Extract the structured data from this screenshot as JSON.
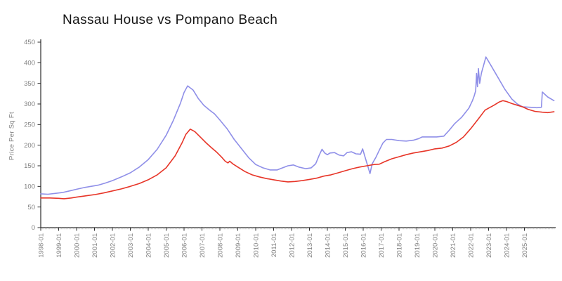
{
  "page": {
    "background": "#ffffff"
  },
  "chart_data": {
    "type": "line",
    "title": "Nassau House vs Pompano Beach",
    "ylabel": "Price Per Sq Ft",
    "xlabel": "",
    "ylim": [
      0,
      450
    ],
    "y_ticks": [
      0,
      50,
      100,
      150,
      200,
      250,
      300,
      350,
      400,
      450
    ],
    "x_tick_labels": [
      "1998-01",
      "1999-01",
      "2000-01",
      "2001-01",
      "2002-01",
      "2003-01",
      "2004-01",
      "2005-01",
      "2006-01",
      "2007-01",
      "2008-01",
      "2009-01",
      "2010-01",
      "2011-01",
      "2012-01",
      "2013-01",
      "2014-01",
      "2015-01",
      "2016-01",
      "2017-01",
      "2018-01",
      "2019-01",
      "2020-01",
      "2021-01",
      "2022-01",
      "2023-01",
      "2024-01",
      "2025-01"
    ],
    "xlim_years": [
      1998.0,
      2026.7
    ],
    "grid": false,
    "legend_position": "none",
    "axis_color": "#2b2b2b",
    "minor_tick_color": "#b0b0b0",
    "tick_label_color": "#828282",
    "title_color": "#141414",
    "series": [
      {
        "name": "Nassau House",
        "color": "#8f8fe8",
        "points": [
          [
            1998.0,
            82
          ],
          [
            1998.4,
            81
          ],
          [
            1998.8,
            83
          ],
          [
            1999.2,
            85
          ],
          [
            1999.6,
            89
          ],
          [
            2000.0,
            93
          ],
          [
            2000.4,
            97
          ],
          [
            2000.8,
            100
          ],
          [
            2001.2,
            103
          ],
          [
            2001.6,
            108
          ],
          [
            2002.0,
            114
          ],
          [
            2002.5,
            123
          ],
          [
            2003.0,
            133
          ],
          [
            2003.5,
            147
          ],
          [
            2004.0,
            165
          ],
          [
            2004.5,
            190
          ],
          [
            2005.0,
            224
          ],
          [
            2005.4,
            260
          ],
          [
            2005.8,
            302
          ],
          [
            2006.0,
            328
          ],
          [
            2006.2,
            344
          ],
          [
            2006.5,
            334
          ],
          [
            2006.8,
            313
          ],
          [
            2007.1,
            297
          ],
          [
            2007.4,
            286
          ],
          [
            2007.7,
            276
          ],
          [
            2008.0,
            261
          ],
          [
            2008.4,
            240
          ],
          [
            2008.8,
            214
          ],
          [
            2009.2,
            192
          ],
          [
            2009.6,
            170
          ],
          [
            2010.0,
            153
          ],
          [
            2010.4,
            145
          ],
          [
            2010.8,
            140
          ],
          [
            2011.2,
            140
          ],
          [
            2011.5,
            145
          ],
          [
            2011.8,
            150
          ],
          [
            2012.1,
            152
          ],
          [
            2012.4,
            147
          ],
          [
            2012.8,
            143
          ],
          [
            2013.1,
            145
          ],
          [
            2013.35,
            155
          ],
          [
            2013.55,
            176
          ],
          [
            2013.7,
            190
          ],
          [
            2013.85,
            181
          ],
          [
            2014.0,
            177
          ],
          [
            2014.15,
            181
          ],
          [
            2014.4,
            182
          ],
          [
            2014.65,
            176
          ],
          [
            2014.9,
            174
          ],
          [
            2015.1,
            182
          ],
          [
            2015.35,
            184
          ],
          [
            2015.6,
            179
          ],
          [
            2015.85,
            178
          ],
          [
            2015.97,
            191
          ],
          [
            2016.1,
            172
          ],
          [
            2016.25,
            150
          ],
          [
            2016.38,
            131
          ],
          [
            2016.5,
            155
          ],
          [
            2016.7,
            170
          ],
          [
            2016.9,
            188
          ],
          [
            2017.1,
            205
          ],
          [
            2017.3,
            214
          ],
          [
            2017.6,
            214
          ],
          [
            2018.0,
            211
          ],
          [
            2018.4,
            210
          ],
          [
            2018.8,
            212
          ],
          [
            2019.1,
            216
          ],
          [
            2019.3,
            220
          ],
          [
            2019.7,
            220
          ],
          [
            2020.1,
            220
          ],
          [
            2020.5,
            222
          ],
          [
            2020.8,
            236
          ],
          [
            2021.1,
            252
          ],
          [
            2021.5,
            268
          ],
          [
            2021.9,
            290
          ],
          [
            2022.1,
            308
          ],
          [
            2022.2,
            320
          ],
          [
            2022.28,
            332
          ],
          [
            2022.33,
            374
          ],
          [
            2022.38,
            342
          ],
          [
            2022.43,
            386
          ],
          [
            2022.5,
            350
          ],
          [
            2022.6,
            375
          ],
          [
            2022.85,
            414
          ],
          [
            2023.1,
            396
          ],
          [
            2023.5,
            366
          ],
          [
            2023.9,
            336
          ],
          [
            2024.3,
            312
          ],
          [
            2024.6,
            300
          ],
          [
            2024.9,
            293
          ],
          [
            2025.3,
            292
          ],
          [
            2025.7,
            291
          ],
          [
            2025.95,
            292
          ],
          [
            2026.0,
            329
          ],
          [
            2026.3,
            317
          ],
          [
            2026.65,
            308
          ]
        ]
      },
      {
        "name": "Pompano Beach",
        "color": "#e73528",
        "points": [
          [
            1998.0,
            72
          ],
          [
            1998.5,
            72
          ],
          [
            1999.0,
            71
          ],
          [
            1999.3,
            70
          ],
          [
            1999.7,
            72
          ],
          [
            2000.0,
            74
          ],
          [
            2000.5,
            77
          ],
          [
            2001.0,
            80
          ],
          [
            2001.5,
            84
          ],
          [
            2002.0,
            89
          ],
          [
            2002.5,
            94
          ],
          [
            2003.0,
            100
          ],
          [
            2003.5,
            107
          ],
          [
            2004.0,
            116
          ],
          [
            2004.5,
            128
          ],
          [
            2005.0,
            145
          ],
          [
            2005.5,
            174
          ],
          [
            2005.9,
            207
          ],
          [
            2006.1,
            226
          ],
          [
            2006.35,
            239
          ],
          [
            2006.6,
            233
          ],
          [
            2006.9,
            220
          ],
          [
            2007.2,
            207
          ],
          [
            2007.5,
            195
          ],
          [
            2007.8,
            184
          ],
          [
            2008.1,
            171
          ],
          [
            2008.3,
            161
          ],
          [
            2008.45,
            157
          ],
          [
            2008.55,
            161
          ],
          [
            2008.75,
            154
          ],
          [
            2009.0,
            147
          ],
          [
            2009.4,
            136
          ],
          [
            2009.8,
            128
          ],
          [
            2010.2,
            123
          ],
          [
            2010.6,
            119
          ],
          [
            2011.0,
            116
          ],
          [
            2011.4,
            113
          ],
          [
            2011.8,
            111
          ],
          [
            2012.2,
            112
          ],
          [
            2012.6,
            114
          ],
          [
            2013.0,
            117
          ],
          [
            2013.4,
            120
          ],
          [
            2013.8,
            125
          ],
          [
            2014.2,
            128
          ],
          [
            2014.6,
            133
          ],
          [
            2015.0,
            138
          ],
          [
            2015.4,
            143
          ],
          [
            2015.8,
            147
          ],
          [
            2016.2,
            150
          ],
          [
            2016.6,
            153
          ],
          [
            2016.9,
            154
          ],
          [
            2017.2,
            160
          ],
          [
            2017.6,
            167
          ],
          [
            2018.0,
            172
          ],
          [
            2018.4,
            177
          ],
          [
            2018.8,
            181
          ],
          [
            2019.2,
            184
          ],
          [
            2019.6,
            187
          ],
          [
            2020.0,
            191
          ],
          [
            2020.4,
            193
          ],
          [
            2020.8,
            198
          ],
          [
            2021.2,
            207
          ],
          [
            2021.6,
            220
          ],
          [
            2022.0,
            240
          ],
          [
            2022.4,
            262
          ],
          [
            2022.8,
            285
          ],
          [
            2023.0,
            290
          ],
          [
            2023.3,
            297
          ],
          [
            2023.6,
            305
          ],
          [
            2023.8,
            308
          ],
          [
            2024.0,
            306
          ],
          [
            2024.3,
            301
          ],
          [
            2024.6,
            297
          ],
          [
            2024.9,
            293
          ],
          [
            2025.2,
            287
          ],
          [
            2025.6,
            282
          ],
          [
            2026.0,
            280
          ],
          [
            2026.3,
            279
          ],
          [
            2026.65,
            281
          ]
        ]
      }
    ]
  }
}
